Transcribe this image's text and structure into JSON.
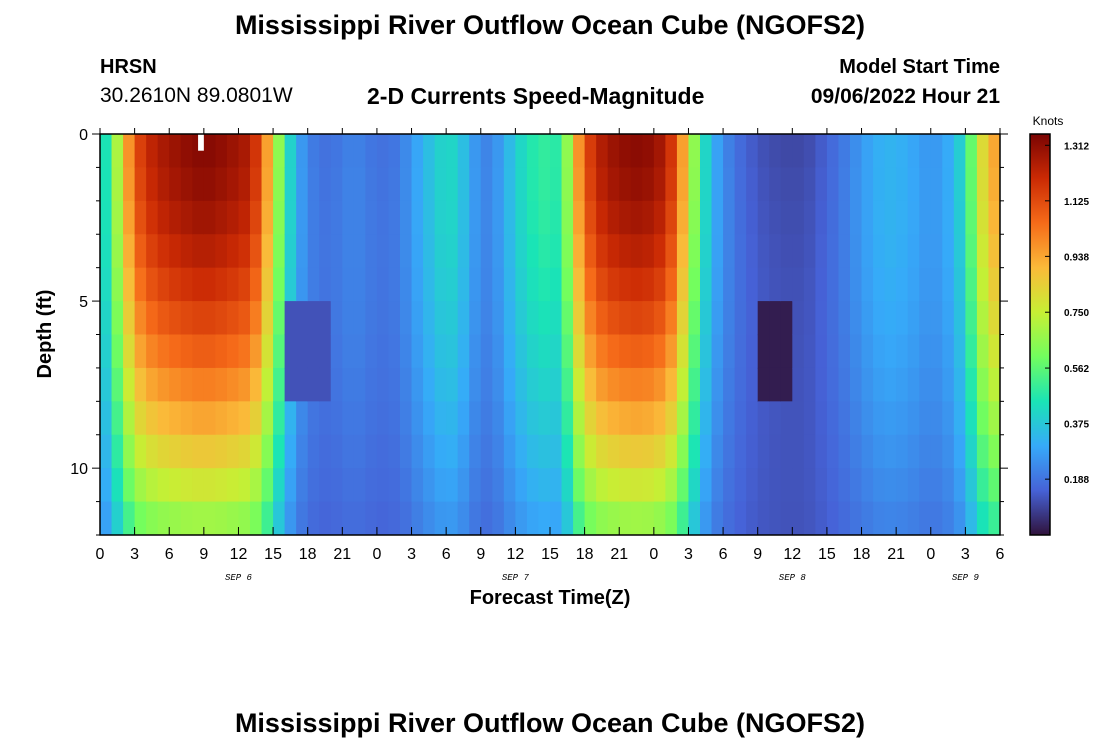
{
  "header": {
    "title": "Mississippi River Outflow Ocean Cube (NGOFS2)",
    "station": "HRSN",
    "coordinates": "30.2610N  89.0801W",
    "subtitle": "2-D Currents Speed-Magnitude",
    "model_start_label": "Model Start Time",
    "model_start_value": "09/06/2022 Hour 21"
  },
  "footer": {
    "title": "Mississippi River Outflow Ocean Cube (NGOFS2)"
  },
  "colors": {
    "colormap": [
      "#30123b",
      "#4662d7",
      "#36aaf9",
      "#1ae4b6",
      "#72fe5e",
      "#c7ef34",
      "#faba39",
      "#f66b19",
      "#cb2a04",
      "#7a0403"
    ]
  },
  "chart_data": {
    "type": "heatmap",
    "xlabel": "Forecast Time(Z)",
    "ylabel": "Depth (ft)",
    "x_range_hours": [
      0,
      78
    ],
    "ylim": [
      0,
      12
    ],
    "y_ticks": [
      0,
      5,
      10
    ],
    "y_tick_labels": [
      "0",
      "5",
      "10"
    ],
    "x_tick_hours": [
      0,
      3,
      6,
      9,
      12,
      15,
      18,
      21,
      24,
      27,
      30,
      33,
      36,
      39,
      42,
      45,
      48,
      51,
      54,
      57,
      60,
      63,
      66,
      69,
      72,
      75,
      78
    ],
    "x_tick_labels": [
      "0",
      "3",
      "6",
      "9",
      "12",
      "15",
      "18",
      "21",
      "0",
      "3",
      "6",
      "9",
      "12",
      "15",
      "18",
      "21",
      "0",
      "3",
      "6",
      "9",
      "12",
      "15",
      "18",
      "21",
      "0",
      "3",
      "6"
    ],
    "day_labels": [
      {
        "hour": 12,
        "label": "SEP 6"
      },
      {
        "hour": 36,
        "label": "SEP 7"
      },
      {
        "hour": 60,
        "label": "SEP 8"
      },
      {
        "hour": 75,
        "label": "SEP 9"
      }
    ],
    "colorbar": {
      "label": "Knots",
      "min": 0,
      "max": 1.35,
      "tick_values": [
        0.188,
        0.375,
        0.562,
        0.75,
        0.938,
        1.125,
        1.312
      ],
      "tick_labels": [
        "0.188",
        "0.375",
        "0.562",
        "0.750",
        "0.938",
        "1.125",
        "1.312"
      ]
    },
    "speed_profile": {
      "time_hours": [
        0,
        1,
        2,
        3,
        4,
        5,
        6,
        7,
        8,
        9,
        10,
        11,
        12,
        13,
        14,
        15,
        16,
        17,
        18,
        19,
        20,
        21,
        22,
        23,
        24,
        25,
        26,
        27,
        28,
        29,
        30,
        31,
        32,
        33,
        34,
        35,
        36,
        37,
        38,
        39,
        40,
        41,
        42,
        43,
        44,
        45,
        46,
        47,
        48,
        49,
        50,
        51,
        52,
        53,
        54,
        55,
        56,
        57,
        58,
        59,
        60,
        61,
        62,
        63,
        64,
        65,
        66,
        67,
        68,
        69,
        70,
        71,
        72,
        73,
        74,
        75,
        76,
        77,
        78
      ],
      "surface_speed_knots": [
        0.35,
        0.55,
        0.85,
        1.1,
        1.2,
        1.25,
        1.28,
        1.3,
        1.32,
        1.33,
        1.32,
        1.3,
        1.28,
        1.25,
        1.1,
        0.8,
        0.5,
        0.3,
        0.22,
        0.18,
        0.18,
        0.2,
        0.22,
        0.2,
        0.18,
        0.18,
        0.2,
        0.26,
        0.32,
        0.38,
        0.42,
        0.4,
        0.3,
        0.22,
        0.22,
        0.3,
        0.38,
        0.45,
        0.48,
        0.5,
        0.45,
        0.85,
        1.1,
        1.22,
        1.28,
        1.3,
        1.32,
        1.32,
        1.3,
        1.25,
        1.1,
        0.8,
        0.5,
        0.32,
        0.24,
        0.18,
        0.15,
        0.12,
        0.11,
        0.1,
        0.1,
        0.1,
        0.12,
        0.15,
        0.18,
        0.22,
        0.26,
        0.3,
        0.32,
        0.32,
        0.3,
        0.28,
        0.25,
        0.28,
        0.32,
        0.45,
        0.7,
        0.92,
        0.95
      ],
      "depth_decay_factor_at_bottom": 0.42,
      "low_speed_patches": [
        {
          "hours": [
            57,
            60
          ],
          "depths_ft": [
            5.5,
            7.5
          ],
          "speed_knots": 0.02
        },
        {
          "hours": [
            16.5,
            19.5
          ],
          "depths_ft": [
            5.5,
            7.5
          ],
          "speed_knots": 0.12
        }
      ]
    },
    "data_gaps": [
      {
        "hours": [
          8.5,
          9
        ],
        "depths_ft": [
          0,
          0.5
        ]
      }
    ]
  }
}
